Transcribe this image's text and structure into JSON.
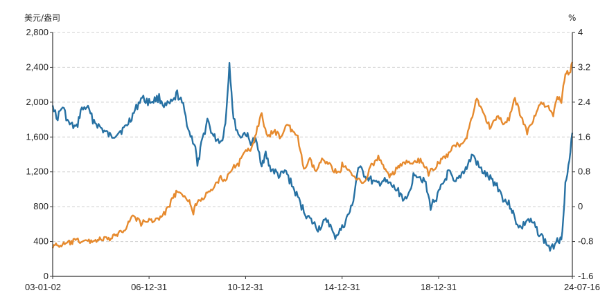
{
  "chart_data": {
    "type": "line",
    "title": "",
    "left_unit": "美元/盎司",
    "right_unit": "%",
    "left_axis": {
      "ylim": [
        0,
        2800
      ],
      "ticks": [
        "0",
        "400",
        "800",
        "1,200",
        "1,600",
        "2,000",
        "2,400",
        "2,800"
      ]
    },
    "right_axis": {
      "ylim": [
        -1.6,
        4.0
      ],
      "ticks": [
        "-1.6",
        "-0.8",
        "0",
        "0.8",
        "1.6",
        "2.4",
        "3.2",
        "4"
      ]
    },
    "x_axis": {
      "range": [
        "2003-01-02",
        "2024-07-16"
      ],
      "tick_labels": [
        "03-01-02",
        "06-12-31",
        "10-12-31",
        "14-12-31",
        "18-12-31",
        "24-07-16"
      ],
      "tick_dates": [
        "2003-01-02",
        "2006-12-31",
        "2010-12-31",
        "2014-12-31",
        "2018-12-31",
        "2024-07-16"
      ]
    },
    "grid": "horizontal-dashed",
    "series": [
      {
        "axis": "right",
        "color": "#2771a3",
        "points": [
          [
            "2003-01-02",
            2.4
          ],
          [
            "2003-03-01",
            2.0
          ],
          [
            "2003-06-01",
            2.3
          ],
          [
            "2003-09-01",
            1.9
          ],
          [
            "2004-01-01",
            1.8
          ],
          [
            "2004-03-01",
            2.2
          ],
          [
            "2004-06-01",
            2.3
          ],
          [
            "2004-09-01",
            2.0
          ],
          [
            "2005-01-01",
            1.8
          ],
          [
            "2005-06-01",
            1.6
          ],
          [
            "2005-09-01",
            1.7
          ],
          [
            "2006-01-01",
            1.8
          ],
          [
            "2006-06-01",
            2.2
          ],
          [
            "2006-09-01",
            2.5
          ],
          [
            "2007-01-01",
            2.4
          ],
          [
            "2007-06-01",
            2.5
          ],
          [
            "2007-09-01",
            2.3
          ],
          [
            "2008-01-01",
            2.4
          ],
          [
            "2008-03-01",
            2.6
          ],
          [
            "2008-06-01",
            2.3
          ],
          [
            "2008-09-01",
            1.7
          ],
          [
            "2008-12-01",
            1.4
          ],
          [
            "2009-01-01",
            0.9
          ],
          [
            "2009-03-01",
            1.4
          ],
          [
            "2009-06-01",
            2.0
          ],
          [
            "2009-09-01",
            1.6
          ],
          [
            "2010-01-01",
            1.5
          ],
          [
            "2010-03-01",
            1.9
          ],
          [
            "2010-05-01",
            3.3
          ],
          [
            "2010-07-01",
            2.0
          ],
          [
            "2010-10-01",
            1.6
          ],
          [
            "2011-01-01",
            1.7
          ],
          [
            "2011-03-01",
            1.5
          ],
          [
            "2011-06-01",
            1.5
          ],
          [
            "2011-09-01",
            1.0
          ],
          [
            "2011-11-01",
            1.2
          ],
          [
            "2012-01-01",
            0.9
          ],
          [
            "2012-06-01",
            0.7
          ],
          [
            "2012-09-01",
            0.8
          ],
          [
            "2012-12-01",
            0.5
          ],
          [
            "2013-03-01",
            0.2
          ],
          [
            "2013-06-01",
            -0.1
          ],
          [
            "2013-09-01",
            -0.3
          ],
          [
            "2014-01-01",
            -0.5
          ],
          [
            "2014-06-01",
            -0.3
          ],
          [
            "2014-09-01",
            -0.7
          ],
          [
            "2015-01-01",
            -0.5
          ],
          [
            "2015-06-01",
            0.0
          ],
          [
            "2015-09-01",
            0.9
          ],
          [
            "2016-01-01",
            0.7
          ],
          [
            "2016-06-01",
            0.5
          ],
          [
            "2016-09-01",
            0.6
          ],
          [
            "2017-01-01",
            0.5
          ],
          [
            "2017-06-01",
            0.3
          ],
          [
            "2017-09-01",
            0.1
          ],
          [
            "2018-01-01",
            0.8
          ],
          [
            "2018-06-01",
            0.6
          ],
          [
            "2018-09-01",
            0.0
          ],
          [
            "2019-01-01",
            0.3
          ],
          [
            "2019-06-01",
            0.8
          ],
          [
            "2019-09-01",
            0.5
          ],
          [
            "2020-01-01",
            0.8
          ],
          [
            "2020-03-01",
            0.9
          ],
          [
            "2020-06-01",
            1.2
          ],
          [
            "2020-09-01",
            0.9
          ],
          [
            "2021-01-01",
            0.7
          ],
          [
            "2021-06-01",
            0.5
          ],
          [
            "2021-09-01",
            0.2
          ],
          [
            "2022-01-01",
            0.0
          ],
          [
            "2022-03-01",
            -0.3
          ],
          [
            "2022-06-01",
            -0.5
          ],
          [
            "2022-09-01",
            -0.3
          ],
          [
            "2022-12-01",
            -0.4
          ],
          [
            "2023-03-01",
            -0.6
          ],
          [
            "2023-06-01",
            -0.8
          ],
          [
            "2023-09-01",
            -1.0
          ],
          [
            "2023-12-01",
            -0.7
          ],
          [
            "2024-02-01",
            -0.8
          ],
          [
            "2024-04-01",
            0.5
          ],
          [
            "2024-06-01",
            1.0
          ],
          [
            "2024-07-16",
            1.7
          ]
        ]
      },
      {
        "axis": "left",
        "color": "#e68a2e",
        "points": [
          [
            "2003-01-02",
            350
          ],
          [
            "2003-06-01",
            360
          ],
          [
            "2004-01-01",
            410
          ],
          [
            "2004-06-01",
            400
          ],
          [
            "2005-01-01",
            425
          ],
          [
            "2005-06-01",
            430
          ],
          [
            "2006-01-01",
            550
          ],
          [
            "2006-05-01",
            700
          ],
          [
            "2006-09-01",
            610
          ],
          [
            "2007-01-01",
            640
          ],
          [
            "2007-06-01",
            660
          ],
          [
            "2007-09-01",
            730
          ],
          [
            "2008-01-01",
            900
          ],
          [
            "2008-03-01",
            980
          ],
          [
            "2008-06-01",
            900
          ],
          [
            "2008-09-01",
            870
          ],
          [
            "2008-11-01",
            740
          ],
          [
            "2009-01-01",
            870
          ],
          [
            "2009-06-01",
            940
          ],
          [
            "2009-09-01",
            1000
          ],
          [
            "2009-12-01",
            1130
          ],
          [
            "2010-03-01",
            1110
          ],
          [
            "2010-06-01",
            1240
          ],
          [
            "2010-09-01",
            1270
          ],
          [
            "2010-12-01",
            1400
          ],
          [
            "2011-04-01",
            1470
          ],
          [
            "2011-08-01",
            1800
          ],
          [
            "2011-09-01",
            1850
          ],
          [
            "2011-12-01",
            1580
          ],
          [
            "2012-03-01",
            1680
          ],
          [
            "2012-06-01",
            1600
          ],
          [
            "2012-10-01",
            1760
          ],
          [
            "2012-12-01",
            1660
          ],
          [
            "2013-03-01",
            1590
          ],
          [
            "2013-06-01",
            1230
          ],
          [
            "2013-09-01",
            1330
          ],
          [
            "2013-12-01",
            1200
          ],
          [
            "2014-03-01",
            1330
          ],
          [
            "2014-06-01",
            1320
          ],
          [
            "2014-09-01",
            1210
          ],
          [
            "2014-12-01",
            1200
          ],
          [
            "2015-01-01",
            1280
          ],
          [
            "2015-06-01",
            1170
          ],
          [
            "2015-09-01",
            1130
          ],
          [
            "2015-12-01",
            1060
          ],
          [
            "2016-03-01",
            1250
          ],
          [
            "2016-07-01",
            1360
          ],
          [
            "2016-10-01",
            1260
          ],
          [
            "2016-12-01",
            1150
          ],
          [
            "2017-06-01",
            1260
          ],
          [
            "2017-09-01",
            1320
          ],
          [
            "2017-12-01",
            1280
          ],
          [
            "2018-04-01",
            1340
          ],
          [
            "2018-08-01",
            1180
          ],
          [
            "2018-12-01",
            1280
          ],
          [
            "2019-06-01",
            1400
          ],
          [
            "2019-09-01",
            1510
          ],
          [
            "2019-12-01",
            1520
          ],
          [
            "2020-03-01",
            1600
          ],
          [
            "2020-08-01",
            2050
          ],
          [
            "2020-11-01",
            1870
          ],
          [
            "2021-03-01",
            1700
          ],
          [
            "2021-06-01",
            1850
          ],
          [
            "2021-09-01",
            1760
          ],
          [
            "2021-12-01",
            1800
          ],
          [
            "2022-03-01",
            2040
          ],
          [
            "2022-06-01",
            1840
          ],
          [
            "2022-09-01",
            1650
          ],
          [
            "2022-12-01",
            1800
          ],
          [
            "2023-04-01",
            2000
          ],
          [
            "2023-07-01",
            1950
          ],
          [
            "2023-10-01",
            1840
          ],
          [
            "2023-12-01",
            2060
          ],
          [
            "2024-02-01",
            2020
          ],
          [
            "2024-04-01",
            2350
          ],
          [
            "2024-06-01",
            2320
          ],
          [
            "2024-07-16",
            2460
          ]
        ]
      }
    ]
  }
}
